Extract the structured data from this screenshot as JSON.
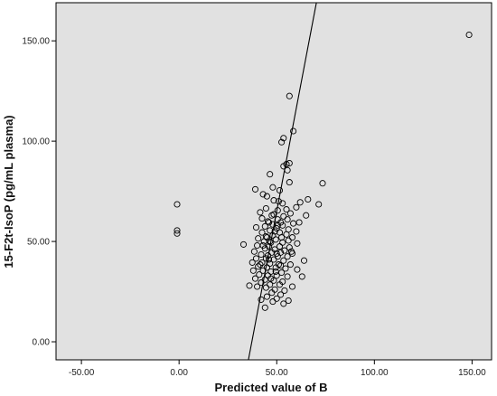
{
  "colors": {
    "plot_bg": "#e1e1e1",
    "axis": "#000000",
    "marker": "#000000",
    "page_bg": "#ffffff"
  },
  "chart_data": {
    "type": "scatter",
    "xlabel": "Predicted value of B",
    "ylabel": "15-F2t-IsoP (pg/mL plasma)",
    "xlim": [
      -63,
      160
    ],
    "ylim": [
      -9,
      169
    ],
    "xticks": [
      -50,
      0,
      50,
      100,
      150
    ],
    "xtick_labels": [
      "-50.00",
      "0.00",
      "50.00",
      "100.00",
      "150.00"
    ],
    "yticks": [
      0,
      50,
      100,
      150
    ],
    "ytick_labels": [
      "0.00",
      "50.00",
      "100.00",
      "150.00"
    ],
    "grid": false,
    "legend": "none",
    "marker": "open-circle",
    "fit_line": {
      "x": [
        35.5,
        70.3
      ],
      "y": [
        -9,
        169
      ]
    },
    "points": [
      [
        148.5,
        153.0
      ],
      [
        56.5,
        122.5
      ],
      [
        58.5,
        105.0
      ],
      [
        53.5,
        101.5
      ],
      [
        52.5,
        99.5
      ],
      [
        56.5,
        89.0
      ],
      [
        55.0,
        88.5
      ],
      [
        53.5,
        87.5
      ],
      [
        55.5,
        85.5
      ],
      [
        46.5,
        83.5
      ],
      [
        73.5,
        79.0
      ],
      [
        56.5,
        79.5
      ],
      [
        39.0,
        76.0
      ],
      [
        48.0,
        77.0
      ],
      [
        51.5,
        75.5
      ],
      [
        43.0,
        73.5
      ],
      [
        45.0,
        72.5
      ],
      [
        66.0,
        71.0
      ],
      [
        48.5,
        70.5
      ],
      [
        51.0,
        70.0
      ],
      [
        62.0,
        69.5
      ],
      [
        53.0,
        69.0
      ],
      [
        71.5,
        68.5
      ],
      [
        -1.0,
        68.5
      ],
      [
        44.5,
        66.5
      ],
      [
        55.0,
        66.0
      ],
      [
        60.0,
        67.0
      ],
      [
        50.5,
        65.5
      ],
      [
        41.5,
        64.5
      ],
      [
        57.0,
        64.0
      ],
      [
        47.5,
        63.0
      ],
      [
        53.5,
        62.5
      ],
      [
        65.0,
        63.0
      ],
      [
        42.5,
        61.5
      ],
      [
        50.5,
        61.0
      ],
      [
        55.5,
        61.0
      ],
      [
        45.5,
        60.0
      ],
      [
        52.0,
        59.5
      ],
      [
        58.5,
        59.0
      ],
      [
        61.5,
        59.5
      ],
      [
        48.0,
        58.5
      ],
      [
        53.0,
        58.0
      ],
      [
        39.5,
        57.0
      ],
      [
        44.0,
        57.5
      ],
      [
        -1.0,
        55.5
      ],
      [
        50.0,
        56.5
      ],
      [
        56.0,
        56.0
      ],
      [
        46.5,
        55.5
      ],
      [
        60.0,
        55.0
      ],
      [
        42.5,
        54.5
      ],
      [
        51.5,
        54.5
      ],
      [
        -1.0,
        54.0
      ],
      [
        55.0,
        53.5
      ],
      [
        48.0,
        53.0
      ],
      [
        45.0,
        52.0
      ],
      [
        52.5,
        52.0
      ],
      [
        58.0,
        52.0
      ],
      [
        40.5,
        51.5
      ],
      [
        49.5,
        51.0
      ],
      [
        56.0,
        50.5
      ],
      [
        43.5,
        50.0
      ],
      [
        47.0,
        49.5
      ],
      [
        53.0,
        49.5
      ],
      [
        60.5,
        49.0
      ],
      [
        33.0,
        48.5
      ],
      [
        40.0,
        48.0
      ],
      [
        46.0,
        47.5
      ],
      [
        51.5,
        47.5
      ],
      [
        56.5,
        47.0
      ],
      [
        44.0,
        46.5
      ],
      [
        49.0,
        46.0
      ],
      [
        54.0,
        45.5
      ],
      [
        38.5,
        45.0
      ],
      [
        47.5,
        44.5
      ],
      [
        52.0,
        44.5
      ],
      [
        58.0,
        44.0
      ],
      [
        42.0,
        43.5
      ],
      [
        45.5,
        43.0
      ],
      [
        50.5,
        42.5
      ],
      [
        55.5,
        42.5
      ],
      [
        39.5,
        41.5
      ],
      [
        44.5,
        41.5
      ],
      [
        48.5,
        41.0
      ],
      [
        53.5,
        40.5
      ],
      [
        64.0,
        40.5
      ],
      [
        37.5,
        39.5
      ],
      [
        42.5,
        39.5
      ],
      [
        46.5,
        39.0
      ],
      [
        51.0,
        38.5
      ],
      [
        57.0,
        38.5
      ],
      [
        40.5,
        37.5
      ],
      [
        45.0,
        37.0
      ],
      [
        49.5,
        37.0
      ],
      [
        54.5,
        36.5
      ],
      [
        60.5,
        36.0
      ],
      [
        38.0,
        35.5
      ],
      [
        43.0,
        35.5
      ],
      [
        47.0,
        35.0
      ],
      [
        52.5,
        34.5
      ],
      [
        41.0,
        33.5
      ],
      [
        45.5,
        33.0
      ],
      [
        50.0,
        33.0
      ],
      [
        55.5,
        32.5
      ],
      [
        63.0,
        32.5
      ],
      [
        39.0,
        31.5
      ],
      [
        44.0,
        31.0
      ],
      [
        48.5,
        30.5
      ],
      [
        53.0,
        30.0
      ],
      [
        42.0,
        29.5
      ],
      [
        46.5,
        28.5
      ],
      [
        51.5,
        28.5
      ],
      [
        36.0,
        28.0
      ],
      [
        40.0,
        27.5
      ],
      [
        58.0,
        27.5
      ],
      [
        44.5,
        27.0
      ],
      [
        49.0,
        26.0
      ],
      [
        54.0,
        25.5
      ],
      [
        47.5,
        24.5
      ],
      [
        52.0,
        23.5
      ],
      [
        45.0,
        22.5
      ],
      [
        50.0,
        21.5
      ],
      [
        42.0,
        21.0
      ],
      [
        56.0,
        20.5
      ],
      [
        48.0,
        20.0
      ],
      [
        53.5,
        19.0
      ],
      [
        44.0,
        17.0
      ],
      [
        46.0,
        59.5
      ],
      [
        49.0,
        55.0
      ],
      [
        43.0,
        48.0
      ],
      [
        50.0,
        44.0
      ],
      [
        46.0,
        41.0
      ],
      [
        52.0,
        38.0
      ],
      [
        47.0,
        31.5
      ],
      [
        41.5,
        38.5
      ],
      [
        48.5,
        63.5
      ],
      [
        50.5,
        58.0
      ],
      [
        44.5,
        52.5
      ],
      [
        57.5,
        45.0
      ],
      [
        49.5,
        35.0
      ],
      [
        46.5,
        50.0
      ]
    ]
  }
}
